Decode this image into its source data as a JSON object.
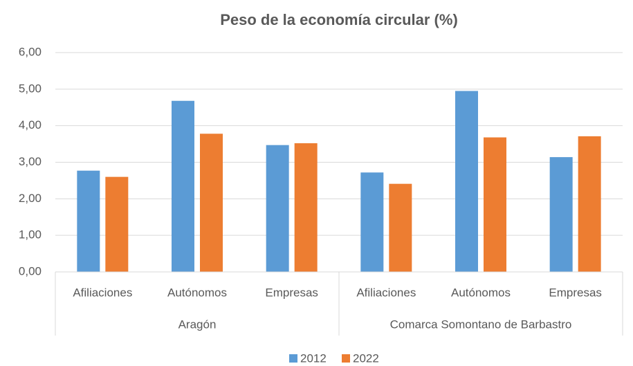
{
  "chart_data": {
    "type": "bar",
    "title": "Peso de la economía circular (%)",
    "groups": [
      {
        "name": "Aragón",
        "categories": [
          "Afiliaciones",
          "Autónomos",
          "Empresas"
        ]
      },
      {
        "name": "Comarca Somontano de Barbastro",
        "categories": [
          "Afiliaciones",
          "Autónomos",
          "Empresas"
        ]
      }
    ],
    "series": [
      {
        "name": "2012",
        "color": "#5b9bd5",
        "values": [
          2.77,
          4.68,
          3.47,
          2.72,
          4.95,
          3.14
        ]
      },
      {
        "name": "2022",
        "color": "#ed7d31",
        "values": [
          2.6,
          3.78,
          3.52,
          2.41,
          3.68,
          3.71
        ]
      }
    ],
    "ylim": [
      0,
      6
    ],
    "yticks": [
      {
        "value": 0,
        "label": "0,00"
      },
      {
        "value": 1,
        "label": "1,00"
      },
      {
        "value": 2,
        "label": "2,00"
      },
      {
        "value": 3,
        "label": "3,00"
      },
      {
        "value": 4,
        "label": "4,00"
      },
      {
        "value": 5,
        "label": "5,00"
      },
      {
        "value": 6,
        "label": "6,00"
      }
    ],
    "grid": true,
    "legend": "bottom"
  }
}
